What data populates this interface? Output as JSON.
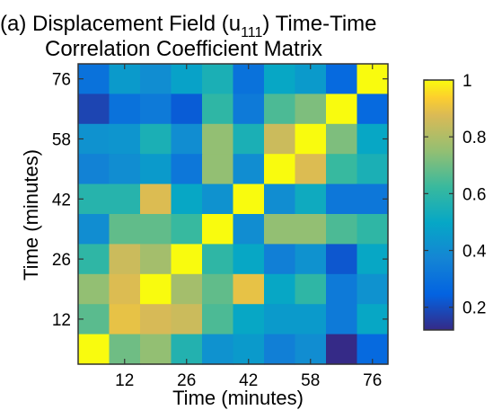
{
  "chart_data": {
    "type": "heatmap",
    "title_line1_prefix": "(a) Displacement Field (u",
    "title_subscript": "111",
    "title_line1_suffix": ") Time-Time",
    "title_line2": "Correlation Coefficient Matrix",
    "xlabel": "Time (minutes)",
    "ylabel": "Time (minutes)",
    "x_ticks": [
      "12",
      "26",
      "42",
      "58",
      "76"
    ],
    "y_ticks": [
      "12",
      "26",
      "42",
      "58",
      "76"
    ],
    "colorbar_ticks": [
      "0.2",
      "0.4",
      "0.6",
      "0.8",
      "1"
    ],
    "colorbar_range": [
      0.12,
      1.0
    ],
    "colormap": "parula",
    "grid_size": 10,
    "matrix_rows_top_to_bottom": [
      [
        0.3,
        0.45,
        0.4,
        0.48,
        0.55,
        0.3,
        0.5,
        0.45,
        0.27,
        1.0
      ],
      [
        0.18,
        0.3,
        0.33,
        0.23,
        0.6,
        0.33,
        0.65,
        0.72,
        1.0,
        0.27
      ],
      [
        0.42,
        0.43,
        0.55,
        0.4,
        0.75,
        0.55,
        0.85,
        1.0,
        0.72,
        0.5
      ],
      [
        0.36,
        0.4,
        0.45,
        0.32,
        0.75,
        0.4,
        1.0,
        0.88,
        0.62,
        0.55
      ],
      [
        0.58,
        0.58,
        0.88,
        0.5,
        0.42,
        1.0,
        0.4,
        0.52,
        0.32,
        0.32
      ],
      [
        0.4,
        0.68,
        0.68,
        0.62,
        1.0,
        0.4,
        0.75,
        0.75,
        0.65,
        0.6
      ],
      [
        0.6,
        0.85,
        0.78,
        1.0,
        0.6,
        0.5,
        0.35,
        0.42,
        0.22,
        0.5
      ],
      [
        0.75,
        0.88,
        1.0,
        0.78,
        0.68,
        0.9,
        0.5,
        0.6,
        0.33,
        0.42
      ],
      [
        0.67,
        0.9,
        0.87,
        0.85,
        0.65,
        0.5,
        0.45,
        0.45,
        0.33,
        0.5
      ],
      [
        1.0,
        0.7,
        0.75,
        0.57,
        0.42,
        0.45,
        0.35,
        0.4,
        0.12,
        0.27
      ]
    ]
  }
}
